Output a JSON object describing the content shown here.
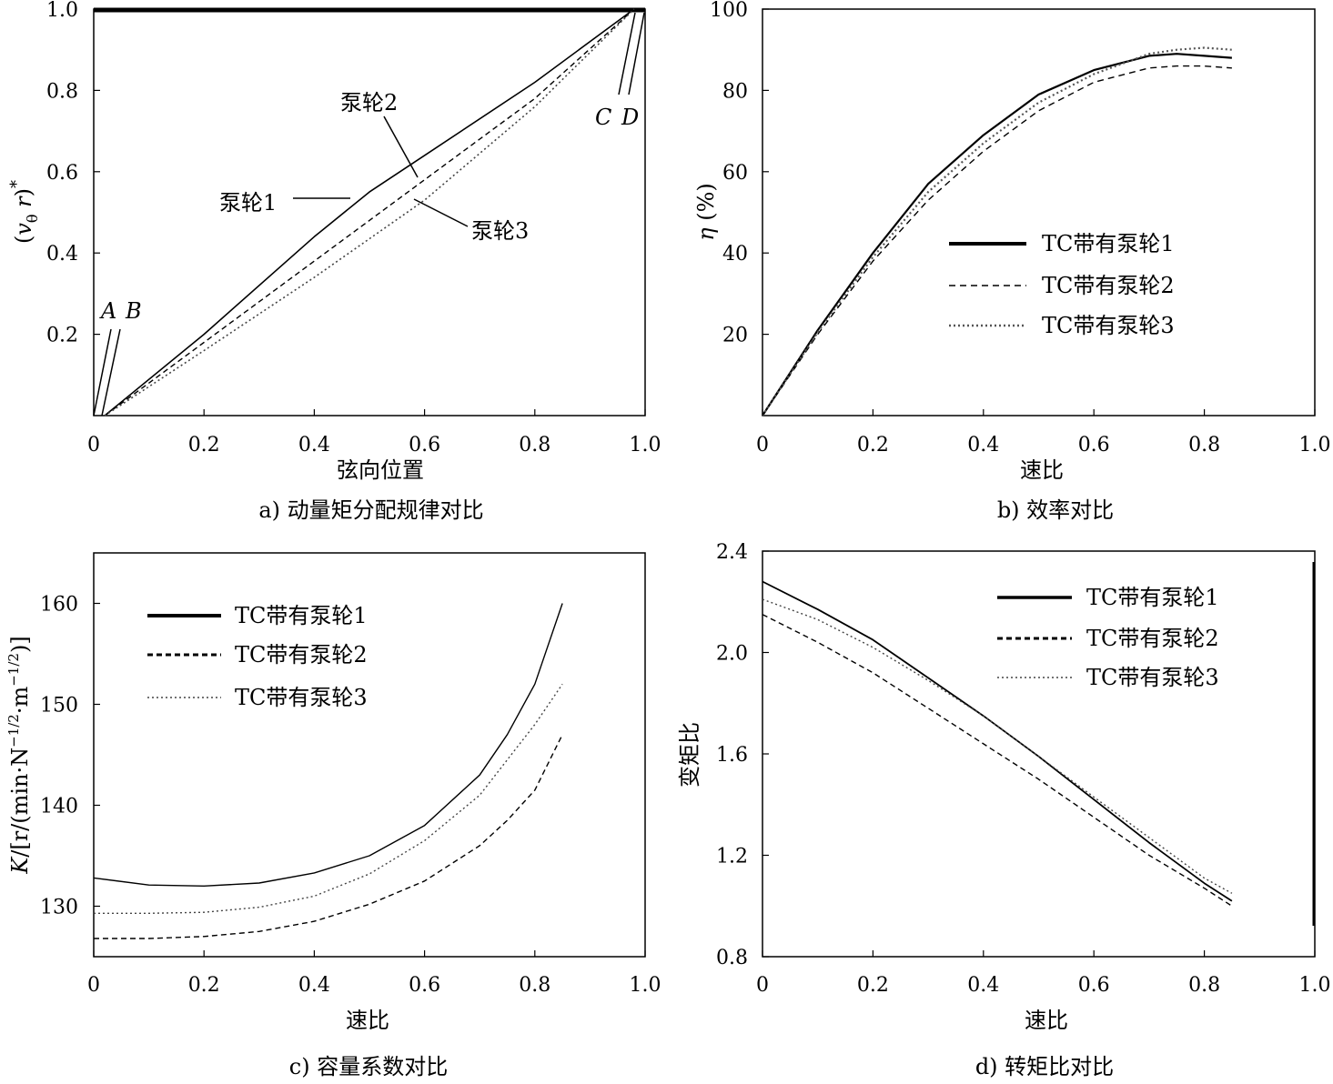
{
  "chart_data": [
    {
      "id": "a",
      "type": "line",
      "caption": "a) 动量矩分配规律对比",
      "xlabel": "弦向位置",
      "ylabel": "(v_θ r)*",
      "ylabel_parts": {
        "open": "(",
        "v": "v",
        "sub": "θ",
        "r": " r",
        "close": ")",
        "sup": "*"
      },
      "xlim": [
        0,
        1.0
      ],
      "ylim": [
        0,
        1.0
      ],
      "xticks": [
        "0",
        "0.2",
        "0.4",
        "0.6",
        "0.8",
        "1.0"
      ],
      "yticks": [
        "0.2",
        "0.4",
        "0.6",
        "0.8",
        "1.0"
      ],
      "annotations": {
        "A": "A",
        "B": "B",
        "C": "C",
        "D": "D",
        "imp1": "泵轮1",
        "imp2": "泵轮2",
        "imp3": "泵轮3"
      },
      "series": [
        {
          "name": "泵轮1",
          "style": "solid",
          "x": [
            0.02,
            0.2,
            0.4,
            0.5,
            0.6,
            0.8,
            0.98
          ],
          "y": [
            0,
            0.2,
            0.44,
            0.55,
            0.64,
            0.82,
            1.0
          ]
        },
        {
          "name": "泵轮2",
          "style": "dash",
          "x": [
            0.02,
            0.2,
            0.4,
            0.6,
            0.8,
            0.98
          ],
          "y": [
            0,
            0.18,
            0.38,
            0.58,
            0.78,
            1.0
          ]
        },
        {
          "name": "泵轮3",
          "style": "dot",
          "x": [
            0.02,
            0.2,
            0.4,
            0.6,
            0.8,
            0.98
          ],
          "y": [
            0,
            0.16,
            0.34,
            0.53,
            0.76,
            1.0
          ]
        }
      ]
    },
    {
      "id": "b",
      "type": "line",
      "caption": "b) 效率对比",
      "xlabel": "速比",
      "ylabel": "η (%)",
      "ylabel_parts": {
        "eta": "η",
        "unit": " (%)"
      },
      "xlim": [
        0,
        1.0
      ],
      "ylim": [
        0,
        100
      ],
      "xticks": [
        "0",
        "0.2",
        "0.4",
        "0.6",
        "0.8",
        "1.0"
      ],
      "yticks": [
        "20",
        "40",
        "60",
        "80",
        "100"
      ],
      "legend_position": "center-right",
      "series": [
        {
          "name": "TC带有泵轮1",
          "style": "solid",
          "x": [
            0,
            0.1,
            0.2,
            0.3,
            0.4,
            0.5,
            0.6,
            0.7,
            0.75,
            0.8,
            0.85
          ],
          "y": [
            0,
            21,
            40,
            57,
            69,
            79,
            85,
            88.5,
            89,
            88.5,
            88
          ]
        },
        {
          "name": "TC带有泵轮2",
          "style": "dash",
          "x": [
            0,
            0.1,
            0.2,
            0.3,
            0.4,
            0.5,
            0.6,
            0.7,
            0.75,
            0.8,
            0.85
          ],
          "y": [
            0,
            20,
            38,
            53,
            65,
            75,
            82,
            85.5,
            86,
            86,
            85.5
          ]
        },
        {
          "name": "TC带有泵轮3",
          "style": "dot",
          "x": [
            0,
            0.1,
            0.2,
            0.3,
            0.4,
            0.5,
            0.6,
            0.7,
            0.75,
            0.8,
            0.85
          ],
          "y": [
            0,
            20.5,
            39,
            55,
            67,
            77,
            84,
            89,
            90,
            90.5,
            90
          ]
        }
      ]
    },
    {
      "id": "c",
      "type": "line",
      "caption": "c) 容量系数对比",
      "xlabel": "速比",
      "ylabel": "K/[r/(min·N^-1/2·m^-1/2)]",
      "ylabel_parts": {
        "k": "K",
        "a": "/[r/(min·N",
        "e1": "−1/2",
        "b": "·m",
        "e2": "−1/2",
        "c": ")]"
      },
      "xlim": [
        0,
        1.0
      ],
      "ylim": [
        125,
        165
      ],
      "xticks": [
        "0",
        "0.2",
        "0.4",
        "0.6",
        "0.8",
        "1.0"
      ],
      "yticks": [
        "130",
        "140",
        "150",
        "160"
      ],
      "legend_position": "top-left",
      "series": [
        {
          "name": "TC带有泵轮1",
          "style": "solid",
          "x": [
            0,
            0.1,
            0.2,
            0.3,
            0.4,
            0.5,
            0.6,
            0.7,
            0.75,
            0.8,
            0.85
          ],
          "y": [
            132.8,
            132.1,
            132,
            132.3,
            133.3,
            135,
            138,
            143,
            147,
            152,
            160
          ]
        },
        {
          "name": "TC带有泵轮2",
          "style": "dash",
          "x": [
            0,
            0.1,
            0.2,
            0.3,
            0.4,
            0.5,
            0.6,
            0.7,
            0.75,
            0.8,
            0.85
          ],
          "y": [
            126.8,
            126.8,
            127,
            127.5,
            128.5,
            130.2,
            132.5,
            136,
            138.5,
            141.5,
            147
          ]
        },
        {
          "name": "TC带有泵轮3",
          "style": "dot",
          "x": [
            0,
            0.1,
            0.2,
            0.3,
            0.4,
            0.5,
            0.6,
            0.7,
            0.75,
            0.8,
            0.85
          ],
          "y": [
            129.3,
            129.3,
            129.4,
            129.9,
            131,
            133.2,
            136.5,
            141,
            144.5,
            148,
            152
          ]
        }
      ]
    },
    {
      "id": "d",
      "type": "line",
      "caption": "d) 转矩比对比",
      "xlabel": "速比",
      "ylabel": "变矩比",
      "xlim": [
        0,
        1.0
      ],
      "ylim": [
        0.8,
        2.4
      ],
      "xticks": [
        "0",
        "0.2",
        "0.4",
        "0.6",
        "0.8",
        "1.0"
      ],
      "yticks": [
        "0.8",
        "1.2",
        "1.6",
        "2.0",
        "2.4"
      ],
      "legend_position": "top-right",
      "series": [
        {
          "name": "TC带有泵轮1",
          "style": "solid",
          "x": [
            0,
            0.1,
            0.2,
            0.3,
            0.4,
            0.5,
            0.6,
            0.7,
            0.8,
            0.85
          ],
          "y": [
            2.28,
            2.17,
            2.05,
            1.9,
            1.75,
            1.59,
            1.42,
            1.25,
            1.09,
            1.02
          ]
        },
        {
          "name": "TC带有泵轮2",
          "style": "dash",
          "x": [
            0,
            0.1,
            0.2,
            0.3,
            0.4,
            0.5,
            0.6,
            0.7,
            0.8,
            0.85
          ],
          "y": [
            2.15,
            2.04,
            1.92,
            1.78,
            1.64,
            1.5,
            1.35,
            1.2,
            1.07,
            1.0
          ]
        },
        {
          "name": "TC带有泵轮3",
          "style": "dot",
          "x": [
            0,
            0.1,
            0.2,
            0.3,
            0.4,
            0.5,
            0.6,
            0.7,
            0.8,
            0.85
          ],
          "y": [
            2.21,
            2.13,
            2.02,
            1.89,
            1.75,
            1.59,
            1.43,
            1.27,
            1.11,
            1.05
          ]
        }
      ]
    }
  ]
}
